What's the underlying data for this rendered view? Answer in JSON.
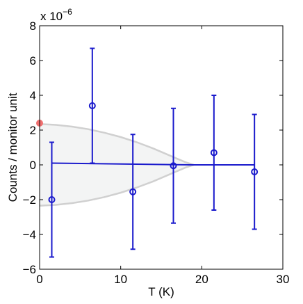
{
  "chart_data": {
    "type": "scatter",
    "xlabel": "T (K)",
    "ylabel": "Counts / monitor unit",
    "y_multiplier": {
      "base": "x 10",
      "exponent": "−6"
    },
    "xlim": [
      0,
      30
    ],
    "ylim": [
      -6,
      8
    ],
    "x_ticks": [
      0,
      10,
      20,
      30
    ],
    "y_ticks": [
      -6,
      -4,
      -2,
      0,
      2,
      4,
      6,
      8
    ],
    "x_tick_labels": [
      "0",
      "10",
      "20",
      "30"
    ],
    "y_tick_labels": [
      "−6",
      "−4",
      "−2",
      "0",
      "2",
      "4",
      "6",
      "8"
    ],
    "grid": false,
    "colors": {
      "data": "#1a1acc",
      "band": "#d0d0d0",
      "band_fill": "#f3f4f4",
      "marker": "#f07070"
    },
    "series": [
      {
        "type": "scatter-errorbar",
        "x": [
          1.5,
          6.5,
          11.5,
          16.5,
          21.5,
          26.5
        ],
        "y": [
          -2.0,
          3.4,
          -1.55,
          -0.05,
          0.7,
          -0.4
        ],
        "y_err": [
          3.3,
          3.3,
          3.3,
          3.3,
          3.3,
          3.3
        ]
      },
      {
        "type": "line",
        "x": [
          1.5,
          19,
          26.5
        ],
        "y": [
          0.1,
          0.0,
          0.0
        ]
      },
      {
        "type": "band",
        "x": [
          0,
          2,
          4,
          6,
          8,
          10,
          12,
          14,
          16,
          17,
          18,
          19
        ],
        "upper": [
          2.35,
          2.3,
          2.2,
          2.05,
          1.85,
          1.6,
          1.3,
          0.95,
          0.55,
          0.35,
          0.15,
          0.0
        ]
      },
      {
        "type": "point",
        "x": [
          0
        ],
        "y": [
          2.4
        ]
      }
    ]
  }
}
